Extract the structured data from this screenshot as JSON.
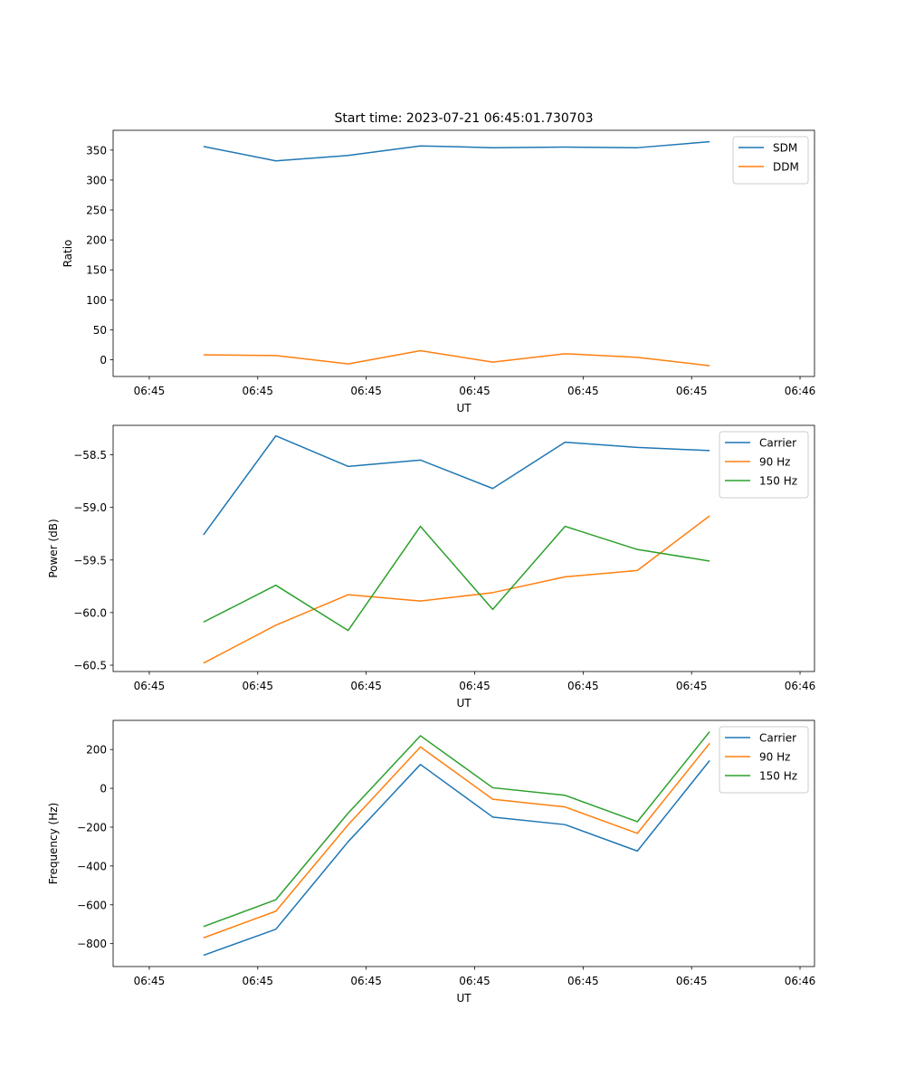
{
  "figure_title": "Start time: 2023-07-21 06:45:01.730703",
  "chart_data": [
    {
      "type": "line",
      "title": "Start time: 2023-07-21 06:45:01.730703",
      "xlabel": "UT",
      "ylabel": "Ratio",
      "xlim": [
        -0.5,
        9.2
      ],
      "xticks": [
        0,
        1.5,
        3,
        4.5,
        6,
        7.5,
        9
      ],
      "xtick_labels": [
        "06:45",
        "06:45",
        "06:45",
        "06:45",
        "06:45",
        "06:45",
        "06:46"
      ],
      "ylim": [
        -28,
        383
      ],
      "yticks": [
        0,
        50,
        100,
        150,
        200,
        250,
        300,
        350
      ],
      "ytick_labels": [
        "0",
        "50",
        "100",
        "150",
        "200",
        "250",
        "300",
        "350"
      ],
      "legend_position": "top-right",
      "x": [
        0.75,
        1.75,
        2.75,
        3.75,
        4.75,
        5.75,
        6.75,
        7.75
      ],
      "series": [
        {
          "name": "SDM",
          "color": "#1f77b4",
          "values": [
            356,
            332,
            341,
            357,
            354,
            355,
            354,
            364
          ]
        },
        {
          "name": "DDM",
          "color": "#ff7f0e",
          "values": [
            8,
            7,
            -7,
            15,
            -4,
            10,
            4,
            -10
          ]
        }
      ]
    },
    {
      "type": "line",
      "title": "",
      "xlabel": "UT",
      "ylabel": "Power (dB)",
      "xlim": [
        -0.5,
        9.2
      ],
      "xticks": [
        0,
        1.5,
        3,
        4.5,
        6,
        7.5,
        9
      ],
      "xtick_labels": [
        "06:45",
        "06:45",
        "06:45",
        "06:45",
        "06:45",
        "06:45",
        "06:46"
      ],
      "ylim": [
        -60.56,
        -58.22
      ],
      "yticks": [
        -60.5,
        -60.0,
        -59.5,
        -59.0,
        -58.5
      ],
      "ytick_labels": [
        "−60.5",
        "−60.0",
        "−59.5",
        "−59.0",
        "−58.5"
      ],
      "legend_position": "top-right",
      "x": [
        0.75,
        1.75,
        2.75,
        3.75,
        4.75,
        5.75,
        6.75,
        7.75
      ],
      "series": [
        {
          "name": "Carrier",
          "color": "#1f77b4",
          "values": [
            -59.26,
            -58.32,
            -58.61,
            -58.55,
            -58.82,
            -58.38,
            -58.43,
            -58.46
          ]
        },
        {
          "name": "90 Hz",
          "color": "#ff7f0e",
          "values": [
            -60.48,
            -60.12,
            -59.83,
            -59.89,
            -59.81,
            -59.66,
            -59.6,
            -59.08
          ]
        },
        {
          "name": "150 Hz",
          "color": "#2ca02c",
          "values": [
            -60.09,
            -59.74,
            -60.17,
            -59.18,
            -59.97,
            -59.18,
            -59.4,
            -59.51
          ]
        }
      ]
    },
    {
      "type": "line",
      "title": "",
      "xlabel": "UT",
      "ylabel": "Frequency (Hz)",
      "xlim": [
        -0.5,
        9.2
      ],
      "xticks": [
        0,
        1.5,
        3,
        4.5,
        6,
        7.5,
        9
      ],
      "xtick_labels": [
        "06:45",
        "06:45",
        "06:45",
        "06:45",
        "06:45",
        "06:45",
        "06:46"
      ],
      "ylim": [
        -918,
        350
      ],
      "yticks": [
        -800,
        -600,
        -400,
        -200,
        0,
        200
      ],
      "ytick_labels": [
        "−800",
        "−600",
        "−400",
        "−200",
        "0",
        "200"
      ],
      "legend_position": "top-right",
      "x": [
        0.75,
        1.75,
        2.75,
        3.75,
        4.75,
        5.75,
        6.75,
        7.75
      ],
      "series": [
        {
          "name": "Carrier",
          "color": "#1f77b4",
          "values": [
            -860,
            -726,
            -275,
            123,
            -148,
            -187,
            -323,
            143
          ]
        },
        {
          "name": "90 Hz",
          "color": "#ff7f0e",
          "values": [
            -770,
            -633,
            -188,
            213,
            -56,
            -96,
            -232,
            232
          ]
        },
        {
          "name": "150 Hz",
          "color": "#2ca02c",
          "values": [
            -712,
            -574,
            -128,
            271,
            3,
            -36,
            -172,
            292
          ]
        }
      ]
    }
  ]
}
